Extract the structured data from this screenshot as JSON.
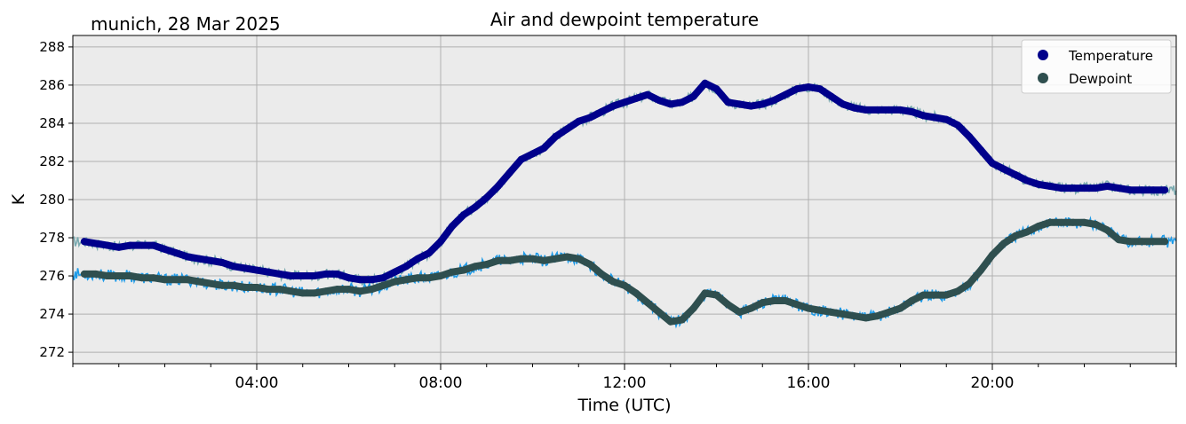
{
  "chart_data": {
    "type": "line",
    "title": "Air and dewpoint temperature",
    "subtitle": "munich, 28 Mar 2025",
    "xlabel": "Time (UTC)",
    "ylabel": "K",
    "xlim": [
      0,
      24
    ],
    "ylim": [
      271.4,
      288.6
    ],
    "yticks": [
      272,
      274,
      276,
      278,
      280,
      282,
      284,
      286,
      288
    ],
    "xticks": [
      {
        "hour": 4,
        "label": "04:00"
      },
      {
        "hour": 8,
        "label": "08:00"
      },
      {
        "hour": 12,
        "label": "12:00"
      },
      {
        "hour": 16,
        "label": "16:00"
      },
      {
        "hour": 20,
        "label": "20:00"
      }
    ],
    "grid": true,
    "legend": {
      "position": "top-right",
      "entries": [
        "Temperature",
        "Dewpoint"
      ]
    },
    "colors": {
      "temperature": "#00008b",
      "temperature_raw": "#7aaab0",
      "dewpoint": "#2f4f4f",
      "dewpoint_raw": "#1e9be8",
      "background": "#ebebeb",
      "grid": "#b0b0b0"
    },
    "series": [
      {
        "name": "Temperature",
        "x": [
          0.25,
          0.5,
          0.75,
          1,
          1.25,
          1.5,
          1.75,
          2,
          2.25,
          2.5,
          2.75,
          3,
          3.25,
          3.5,
          3.75,
          4,
          4.25,
          4.5,
          4.75,
          5,
          5.25,
          5.5,
          5.75,
          6,
          6.25,
          6.5,
          6.75,
          7,
          7.25,
          7.5,
          7.75,
          8,
          8.25,
          8.5,
          8.75,
          9,
          9.25,
          9.5,
          9.75,
          10,
          10.25,
          10.5,
          10.75,
          11,
          11.25,
          11.5,
          11.75,
          12,
          12.25,
          12.5,
          12.75,
          13,
          13.25,
          13.5,
          13.75,
          14,
          14.25,
          14.5,
          14.75,
          15,
          15.25,
          15.5,
          15.75,
          16,
          16.25,
          16.5,
          16.75,
          17,
          17.25,
          17.5,
          17.75,
          18,
          18.25,
          18.5,
          18.75,
          19,
          19.25,
          19.5,
          19.75,
          20,
          20.25,
          20.5,
          20.75,
          21,
          21.25,
          21.5,
          21.75,
          22,
          22.25,
          22.5,
          22.75,
          23,
          23.25,
          23.5,
          23.75
        ],
        "values": [
          277.8,
          277.7,
          277.6,
          277.5,
          277.6,
          277.6,
          277.6,
          277.4,
          277.2,
          277.0,
          276.9,
          276.8,
          276.7,
          276.5,
          276.4,
          276.3,
          276.2,
          276.1,
          276.0,
          276.0,
          276.0,
          276.1,
          276.1,
          275.9,
          275.8,
          275.8,
          275.9,
          276.2,
          276.5,
          276.9,
          277.2,
          277.8,
          278.6,
          279.2,
          279.6,
          280.1,
          280.7,
          281.4,
          282.1,
          282.4,
          282.7,
          283.3,
          283.7,
          284.1,
          284.3,
          284.6,
          284.9,
          285.1,
          285.3,
          285.5,
          285.2,
          285.0,
          285.1,
          285.4,
          286.1,
          285.8,
          285.1,
          285.0,
          284.9,
          285.0,
          285.2,
          285.5,
          285.8,
          285.9,
          285.8,
          285.4,
          285.0,
          284.8,
          284.7,
          284.7,
          284.7,
          284.7,
          284.6,
          284.4,
          284.3,
          284.2,
          283.9,
          283.3,
          282.6,
          281.9,
          281.6,
          281.3,
          281.0,
          280.8,
          280.7,
          280.6,
          280.6,
          280.6,
          280.6,
          280.7,
          280.6,
          280.5,
          280.5,
          280.5,
          280.5
        ],
        "raw_line": "Temperature (raw)"
      },
      {
        "name": "Dewpoint",
        "x": [
          0.25,
          0.5,
          0.75,
          1,
          1.25,
          1.5,
          1.75,
          2,
          2.25,
          2.5,
          2.75,
          3,
          3.25,
          3.5,
          3.75,
          4,
          4.25,
          4.5,
          4.75,
          5,
          5.25,
          5.5,
          5.75,
          6,
          6.25,
          6.5,
          6.75,
          7,
          7.25,
          7.5,
          7.75,
          8,
          8.25,
          8.5,
          8.75,
          9,
          9.25,
          9.5,
          9.75,
          10,
          10.25,
          10.5,
          10.75,
          11,
          11.25,
          11.5,
          11.75,
          12,
          12.25,
          12.5,
          12.75,
          13,
          13.25,
          13.5,
          13.75,
          14,
          14.25,
          14.5,
          14.75,
          15,
          15.25,
          15.5,
          15.75,
          16,
          16.25,
          16.5,
          16.75,
          17,
          17.25,
          17.5,
          17.75,
          18,
          18.25,
          18.5,
          18.75,
          19,
          19.25,
          19.5,
          19.75,
          20,
          20.25,
          20.5,
          20.75,
          21,
          21.25,
          21.5,
          21.75,
          22,
          22.25,
          22.5,
          22.75,
          23,
          23.25,
          23.5,
          23.75
        ],
        "values": [
          276.1,
          276.1,
          276.0,
          276.0,
          276.0,
          275.9,
          275.9,
          275.8,
          275.8,
          275.8,
          275.7,
          275.6,
          275.5,
          275.5,
          275.4,
          275.4,
          275.3,
          275.3,
          275.2,
          275.1,
          275.1,
          275.2,
          275.3,
          275.3,
          275.2,
          275.3,
          275.5,
          275.7,
          275.8,
          275.9,
          275.9,
          276.0,
          276.2,
          276.3,
          276.5,
          276.6,
          276.8,
          276.8,
          276.9,
          276.9,
          276.8,
          276.9,
          277.0,
          276.9,
          276.6,
          276.1,
          275.7,
          275.5,
          275.1,
          274.6,
          274.1,
          273.6,
          273.7,
          274.3,
          275.1,
          275.0,
          274.5,
          274.1,
          274.3,
          274.6,
          274.7,
          274.7,
          274.5,
          274.3,
          274.2,
          274.1,
          274.0,
          273.9,
          273.8,
          273.9,
          274.1,
          274.3,
          274.7,
          275.0,
          275.0,
          275.0,
          275.2,
          275.6,
          276.3,
          277.1,
          277.7,
          278.1,
          278.3,
          278.6,
          278.8,
          278.8,
          278.8,
          278.8,
          278.7,
          278.4,
          277.9,
          277.8,
          277.8,
          277.8,
          277.8
        ],
        "raw_line": "Dewpoint (raw)"
      }
    ]
  }
}
